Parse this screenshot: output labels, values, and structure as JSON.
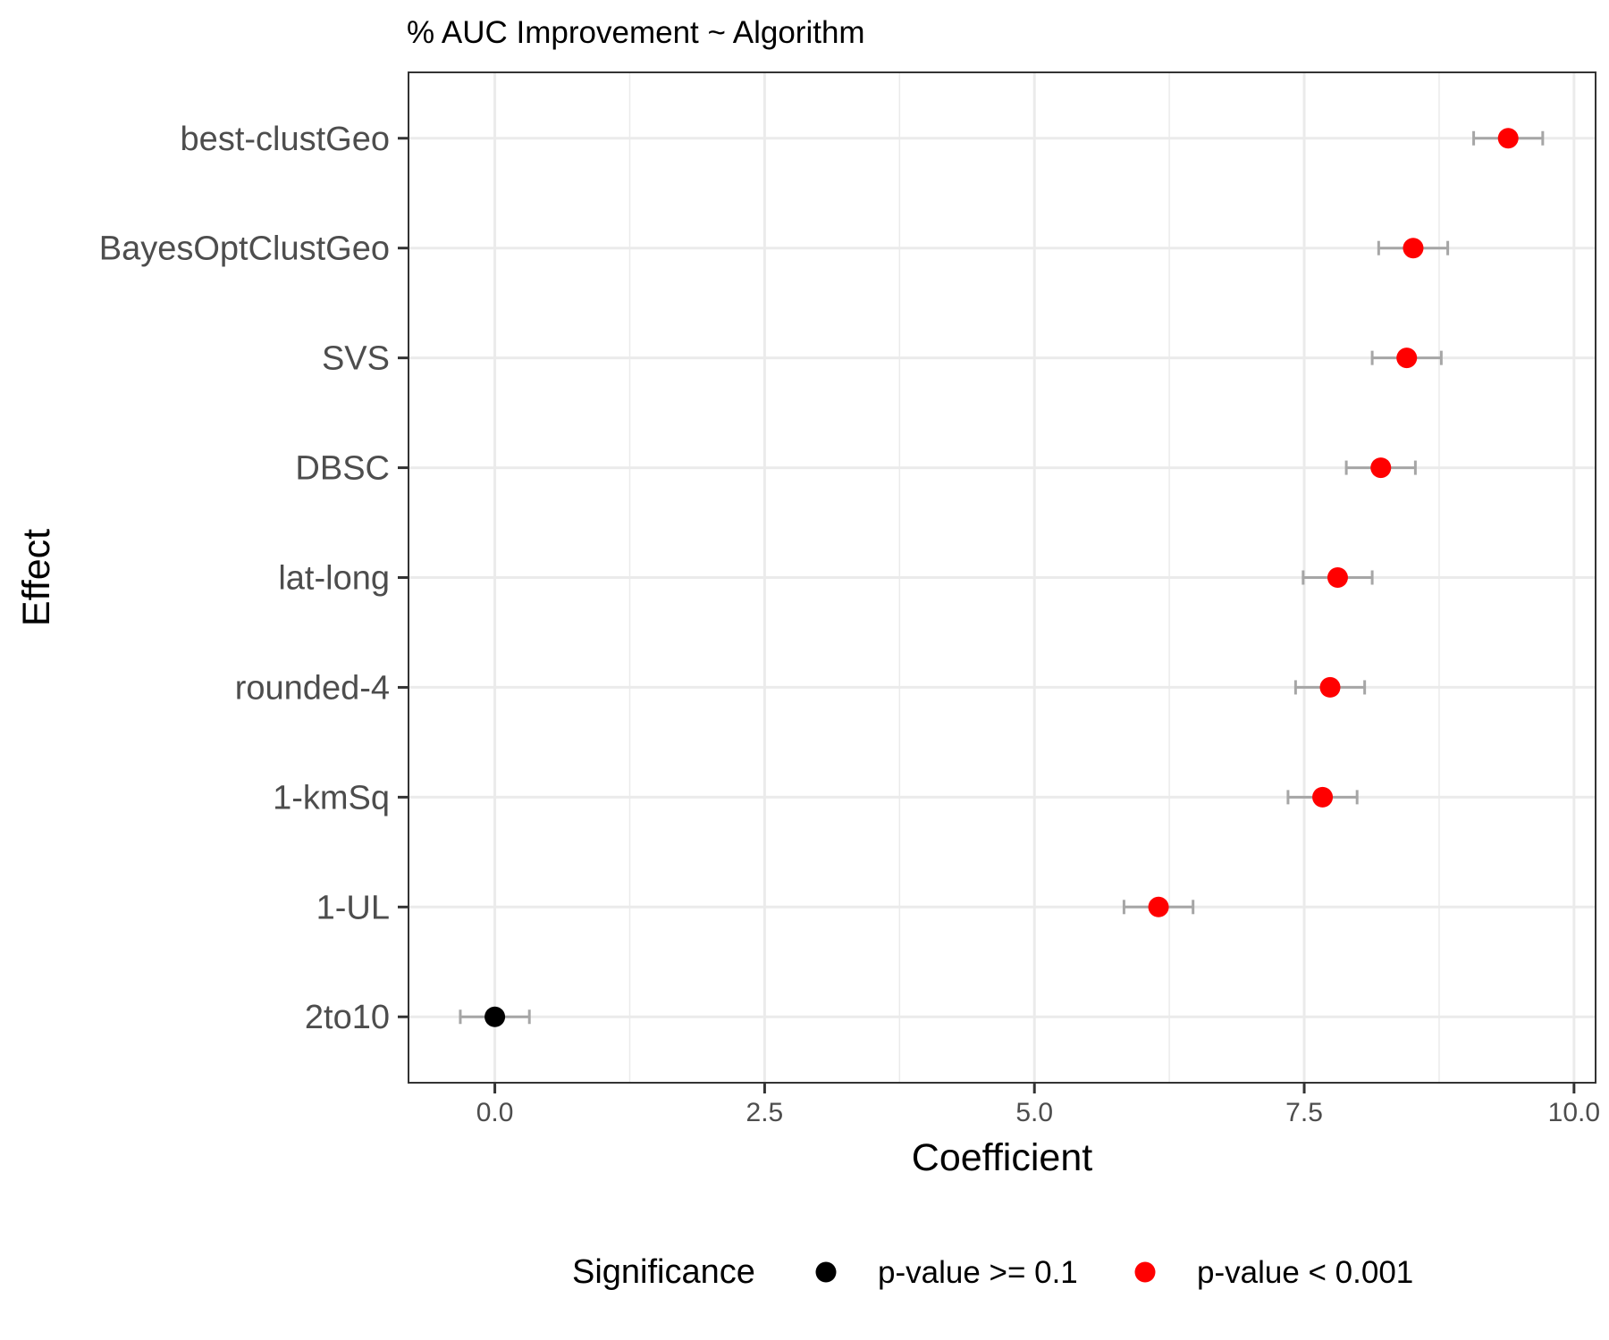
{
  "chart_data": {
    "type": "scatter",
    "subtype": "coefficient-plot-with-error-bars",
    "title": "% AUC Improvement ~ Algorithm",
    "xlabel": "Coefficient",
    "ylabel": "Effect",
    "xlim": [
      -0.8,
      10.2
    ],
    "x_ticks": [
      "0.0",
      "2.5",
      "5.0",
      "7.5",
      "10.0"
    ],
    "grid": true,
    "legend": {
      "title": "Significance",
      "position": "bottom",
      "entries": [
        {
          "label": "p-value >= 0.1",
          "color": "#000000"
        },
        {
          "label": "p-value < 0.001",
          "color": "#ff0000"
        }
      ]
    },
    "categories": [
      "best-clustGeo",
      "BayesOptClustGeo",
      "SVS",
      "DBSC",
      "lat-long",
      "rounded-4",
      "1-kmSq",
      "1-UL",
      "2to10"
    ],
    "points": [
      {
        "effect": "best-clustGeo",
        "coef": 9.39,
        "lo": 9.07,
        "hi": 9.71,
        "significance": "p-value < 0.001"
      },
      {
        "effect": "BayesOptClustGeo",
        "coef": 8.51,
        "lo": 8.19,
        "hi": 8.83,
        "significance": "p-value < 0.001"
      },
      {
        "effect": "SVS",
        "coef": 8.45,
        "lo": 8.13,
        "hi": 8.77,
        "significance": "p-value < 0.001"
      },
      {
        "effect": "DBSC",
        "coef": 8.21,
        "lo": 7.89,
        "hi": 8.53,
        "significance": "p-value < 0.001"
      },
      {
        "effect": "lat-long",
        "coef": 7.81,
        "lo": 7.49,
        "hi": 8.13,
        "significance": "p-value < 0.001"
      },
      {
        "effect": "rounded-4",
        "coef": 7.74,
        "lo": 7.42,
        "hi": 8.06,
        "significance": "p-value < 0.001"
      },
      {
        "effect": "1-kmSq",
        "coef": 7.67,
        "lo": 7.35,
        "hi": 7.99,
        "significance": "p-value < 0.001"
      },
      {
        "effect": "1-UL",
        "coef": 6.15,
        "lo": 5.83,
        "hi": 6.47,
        "significance": "p-value < 0.001"
      },
      {
        "effect": "2to10",
        "coef": 0.0,
        "lo": -0.32,
        "hi": 0.32,
        "significance": "p-value >= 0.1"
      }
    ],
    "colors": {
      "grid": "#ebebeb",
      "panel_border": "#333333",
      "error_bar": "#a6a6a6"
    }
  }
}
